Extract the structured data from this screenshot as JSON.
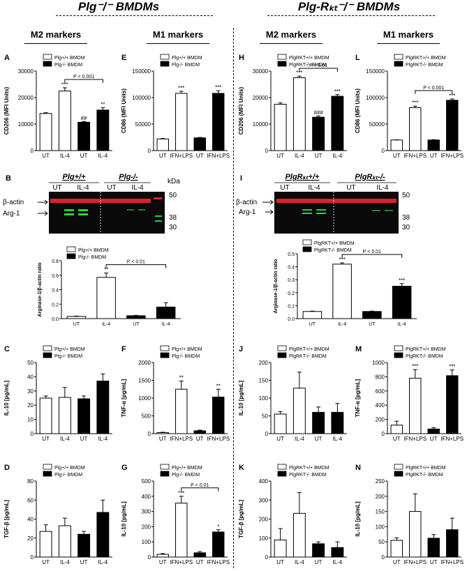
{
  "headers": {
    "left": "Plg⁻/⁻ BMDMs",
    "right": "Plg-Rₖₜ⁻/⁻ BMDMs"
  },
  "columns": [
    "M2 markers",
    "M1 markers",
    "M2 markers",
    "M1 markers"
  ],
  "blots": {
    "B": {
      "letter": "B",
      "genotypes": [
        "Plg+/+",
        "Plg-/-"
      ],
      "treatments": [
        "UT",
        "IL-4",
        "UT",
        "IL-4"
      ],
      "bands": [
        "β-actin",
        "Arg-1"
      ],
      "kda_label": "kDa",
      "markers": [
        "50",
        "38",
        "30"
      ]
    },
    "I": {
      "letter": "I",
      "genotypes": [
        "PlgRₖₜ+/+",
        "PlgRₖₜ-/-"
      ],
      "treatments": [
        "UT",
        "IL-4",
        "UT",
        "IL-4"
      ],
      "bands": [
        "β-actin",
        "Arg-1"
      ],
      "markers": [
        "50",
        "38",
        "30"
      ]
    }
  },
  "colors": {
    "wt": "#ffffff",
    "ko": "#000000",
    "blot_bg": "#0a0a0a",
    "actin": "#e0202a",
    "arg": "#27d43a"
  },
  "chart_data": [
    {
      "id": "A",
      "type": "bar",
      "ylabel": "CD206 (MFI Units)",
      "ylim": [
        0,
        30000
      ],
      "yticks": [
        "0",
        "10000",
        "20000",
        "30000"
      ],
      "categories": [
        "UT",
        "IL-4",
        "UT",
        "IL-4"
      ],
      "values": [
        14000,
        22500,
        10700,
        15300
      ],
      "errors": [
        300,
        1200,
        300,
        900
      ],
      "colors": [
        "wt",
        "wt",
        "ko",
        "ko"
      ],
      "legend": [
        "Plg+/+ BMDM",
        "Plg-/- BMDM"
      ],
      "annotations": [
        "",
        "***",
        "##",
        "**"
      ],
      "bracket": {
        "from": 1,
        "to": 3,
        "label": "P < 0.001"
      }
    },
    {
      "id": "E",
      "type": "bar",
      "ylabel": "CD86 (MFI Units)",
      "ylim": [
        0,
        150000
      ],
      "yticks": [
        "0",
        "50000",
        "100000",
        "150000"
      ],
      "categories": [
        "UT",
        "IFN+LPS",
        "UT",
        "IFN+LPS"
      ],
      "values": [
        22000,
        108000,
        24000,
        108000
      ],
      "errors": [
        1000,
        4000,
        800,
        5000
      ],
      "colors": [
        "wt",
        "wt",
        "ko",
        "ko"
      ],
      "legend": [
        "Plg+/+ BMDM",
        "Plg-/- BMDM"
      ],
      "annotations": [
        "",
        "***",
        "",
        "***"
      ]
    },
    {
      "id": "H",
      "type": "bar",
      "ylabel": "CD206 (MFI Units)",
      "ylim": [
        0,
        30000
      ],
      "yticks": [
        "0",
        "10000",
        "20000",
        "30000"
      ],
      "categories": [
        "UT",
        "IL-4",
        "UT",
        "IL-4"
      ],
      "values": [
        17500,
        27500,
        12600,
        20500
      ],
      "errors": [
        500,
        600,
        500,
        600
      ],
      "colors": [
        "wt",
        "wt",
        "ko",
        "ko"
      ],
      "legend": [
        "PlgRKT+/+ BMDM",
        "PlgRKT-/- BMDM"
      ],
      "annotations": [
        "",
        "***",
        "###",
        "***"
      ],
      "bracket": {
        "from": 1,
        "to": 3,
        "label": "P < 0.01"
      }
    },
    {
      "id": "L",
      "type": "bar",
      "ylabel": "CD86 (MFI Units)",
      "ylim": [
        0,
        150000
      ],
      "yticks": [
        "0",
        "50000",
        "100000",
        "150000"
      ],
      "categories": [
        "UT",
        "IFN+LPS",
        "UT",
        "IFN+LPS"
      ],
      "values": [
        20000,
        81000,
        20000,
        95000
      ],
      "errors": [
        500,
        3000,
        600,
        2500
      ],
      "colors": [
        "wt",
        "wt",
        "ko",
        "ko"
      ],
      "legend": [
        "PlgRKT+/+ BMDM",
        "PlgRKT-/- BMDM"
      ],
      "annotations": [
        "",
        "***",
        "",
        "***"
      ],
      "bracket": {
        "from": 1,
        "to": 3,
        "label": "P < 0.001"
      }
    },
    {
      "id": "Bq",
      "type": "bar",
      "ylabel": "Arginase-1/β-actin ratio",
      "ylim": [
        0,
        0.8
      ],
      "yticks": [
        "0.0",
        "0.2",
        "0.4",
        "0.6",
        "0.8"
      ],
      "categories": [
        "UT",
        "IL-4",
        "UT",
        "IL-4"
      ],
      "values": [
        0.03,
        0.57,
        0.04,
        0.16
      ],
      "errors": [
        0.005,
        0.06,
        0.005,
        0.06
      ],
      "colors": [
        "wt",
        "wt",
        "ko",
        "ko"
      ],
      "legend": [
        "Plg+/+ BMDM",
        "Plg-/- BMDM"
      ],
      "annotations": [
        "",
        "**",
        "",
        ""
      ],
      "bracket": {
        "from": 1,
        "to": 3,
        "label": "P < 0.01"
      }
    },
    {
      "id": "Iq",
      "type": "bar",
      "ylabel": "Arginase-1/β-actin ratio",
      "ylim": [
        0,
        0.5
      ],
      "yticks": [
        "0.0",
        "0.1",
        "0.2",
        "0.3",
        "0.4",
        "0.5"
      ],
      "categories": [
        "UT",
        "IL-4",
        "UT",
        "IL-4"
      ],
      "values": [
        0.055,
        0.42,
        0.055,
        0.25
      ],
      "errors": [
        0.003,
        0.01,
        0.003,
        0.02
      ],
      "colors": [
        "wt",
        "wt",
        "ko",
        "ko"
      ],
      "legend": [
        "PlgRKT+/+ BMDM",
        "PlgRKT-/- BMDM"
      ],
      "annotations": [
        "",
        "***",
        "",
        "***"
      ],
      "bracket": {
        "from": 1,
        "to": 3,
        "label": "P < 0.01"
      }
    },
    {
      "id": "C",
      "type": "bar",
      "ylabel": "IL-10 [pg/mL]",
      "ylim": [
        0,
        50
      ],
      "yticks": [
        "0",
        "10",
        "20",
        "30",
        "40",
        "50"
      ],
      "categories": [
        "UT",
        "IL-4",
        "UT",
        "IL-4"
      ],
      "values": [
        25,
        25.5,
        24.5,
        37
      ],
      "errors": [
        1.5,
        7,
        2,
        5
      ],
      "colors": [
        "wt",
        "wt",
        "ko",
        "ko"
      ],
      "legend": [
        "Plg+/+ BMDM",
        "Plg-/- BMDM"
      ],
      "annotations": [
        "",
        "",
        "",
        ""
      ]
    },
    {
      "id": "F",
      "type": "bar",
      "ylabel": "TNF-α [pg/mL]",
      "ylim": [
        0,
        2000
      ],
      "yticks": [
        "0",
        "500",
        "1000",
        "1500",
        "2000"
      ],
      "categories": [
        "UT",
        "IFN+LPS",
        "UT",
        "IFN+LPS"
      ],
      "values": [
        30,
        1250,
        80,
        1030
      ],
      "errors": [
        10,
        230,
        20,
        220
      ],
      "colors": [
        "wt",
        "wt",
        "ko",
        "ko"
      ],
      "legend": [
        "Plg+/+ BMDM",
        "Plg-/- BMDM"
      ],
      "annotations": [
        "",
        "**",
        "",
        "**"
      ]
    },
    {
      "id": "J",
      "type": "bar",
      "ylabel": "IL-10 [pg/mL]",
      "ylim": [
        0,
        200
      ],
      "yticks": [
        "0",
        "50",
        "100",
        "150",
        "200"
      ],
      "categories": [
        "UT",
        "IL-4",
        "UT",
        "IL-4"
      ],
      "values": [
        55,
        128,
        60,
        60
      ],
      "errors": [
        7,
        45,
        15,
        25
      ],
      "colors": [
        "wt",
        "wt",
        "ko",
        "ko"
      ],
      "legend": [
        "PlgRKT+/+ BMDM",
        "PlgRKT-/- BMDM"
      ],
      "annotations": [
        "",
        "",
        "",
        ""
      ]
    },
    {
      "id": "M",
      "type": "bar",
      "ylabel": "TNF-α [pg/mL]",
      "ylim": [
        0,
        1000
      ],
      "yticks": [
        "0",
        "200",
        "400",
        "600",
        "800",
        "1000"
      ],
      "categories": [
        "UT",
        "IFN+LPS",
        "UT",
        "IFN+LPS"
      ],
      "values": [
        120,
        780,
        65,
        815
      ],
      "errors": [
        55,
        120,
        20,
        80
      ],
      "colors": [
        "wt",
        "wt",
        "ko",
        "ko"
      ],
      "legend": [
        "PlgRKT+/+ BMDM",
        "PlgRKT-/- BMDM"
      ],
      "annotations": [
        "",
        "***",
        "",
        "***"
      ]
    },
    {
      "id": "D",
      "type": "bar",
      "ylabel": "TGF-β [pg/mL]",
      "ylim": [
        0,
        80
      ],
      "yticks": [
        "0",
        "20",
        "40",
        "60",
        "80"
      ],
      "categories": [
        "UT",
        "IL-4",
        "UT",
        "IL-4"
      ],
      "values": [
        27,
        33,
        24,
        47
      ],
      "errors": [
        7,
        8,
        3,
        13
      ],
      "colors": [
        "wt",
        "wt",
        "ko",
        "ko"
      ],
      "legend": [
        "Plg+/+ BMDM",
        "Plg-/- BMDM"
      ],
      "annotations": [
        "",
        "",
        "",
        ""
      ]
    },
    {
      "id": "G",
      "type": "bar",
      "ylabel": "IL-10 [pg/mL]",
      "ylim": [
        0,
        500
      ],
      "yticks": [
        "0",
        "100",
        "200",
        "300",
        "400",
        "500"
      ],
      "categories": [
        "UT",
        "IFN+LPS",
        "UT",
        "IFN+LPS"
      ],
      "values": [
        18,
        355,
        28,
        165
      ],
      "errors": [
        5,
        45,
        8,
        15
      ],
      "colors": [
        "wt",
        "wt",
        "ko",
        "ko"
      ],
      "legend": [
        "Plg+/+ BMDM",
        "Plg-/- BMDM"
      ],
      "annotations": [
        "",
        "***",
        "",
        "*"
      ],
      "bracket": {
        "from": 1,
        "to": 3,
        "label": "P < 0.01"
      }
    },
    {
      "id": "K",
      "type": "bar",
      "ylabel": "TGF-β [pg/mL]",
      "ylim": [
        0,
        400
      ],
      "yticks": [
        "0",
        "100",
        "200",
        "300",
        "400"
      ],
      "categories": [
        "UT",
        "IL-4",
        "UT",
        "IL-4"
      ],
      "values": [
        90,
        230,
        70,
        50
      ],
      "errors": [
        60,
        110,
        10,
        30
      ],
      "colors": [
        "wt",
        "wt",
        "ko",
        "ko"
      ],
      "legend": [
        "PlgRKT+/+ BMDM",
        "PlgRKT-/- BMDM"
      ],
      "annotations": [
        "",
        "",
        "",
        ""
      ]
    },
    {
      "id": "N",
      "type": "bar",
      "ylabel": "IL-10 [pg/mL]",
      "ylim": [
        0,
        250
      ],
      "yticks": [
        "0",
        "50",
        "100",
        "150",
        "200",
        "250"
      ],
      "categories": [
        "UT",
        "IFN+LPS",
        "UT",
        "IFN+LPS"
      ],
      "values": [
        55,
        150,
        62,
        90
      ],
      "errors": [
        8,
        58,
        12,
        38
      ],
      "colors": [
        "wt",
        "wt",
        "ko",
        "ko"
      ],
      "legend": [
        "PlgRKT+/+ BMDM",
        "PlgRKT-/- BMDM"
      ],
      "annotations": [
        "",
        "",
        "",
        ""
      ]
    }
  ]
}
